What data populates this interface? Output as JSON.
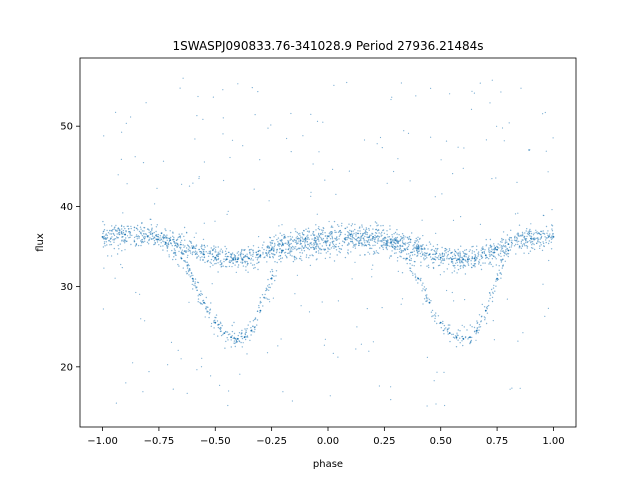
{
  "chart_data": {
    "type": "scatter",
    "title": "1SWASPJ090833.76-341028.9 Period 27936.21484s",
    "xlabel": "phase",
    "ylabel": "flux",
    "xlim": [
      -1.1,
      1.1
    ],
    "ylim": [
      12.5,
      58.5
    ],
    "xticks": [
      -1.0,
      -0.75,
      -0.5,
      -0.25,
      0.0,
      0.25,
      0.5,
      0.75,
      1.0
    ],
    "xtick_labels": [
      "−1.00",
      "−0.75",
      "−0.50",
      "−0.25",
      "0.00",
      "0.25",
      "0.50",
      "0.75",
      "1.00"
    ],
    "yticks": [
      20,
      30,
      40,
      50
    ],
    "ytick_labels": [
      "20",
      "30",
      "40",
      "50"
    ],
    "grid": false,
    "marker_color": "#1f77b4",
    "series": [
      {
        "description_points": "phase-folded light curve repeated twice; upper branch baseline ~36 with shallow dip to ~33.5 near phase -0.4 and 0.6; lower branch deep eclipse to ~23.5 near phase -0.4 and 0.6; sparse outliers 15-56",
        "x": [
          -1.0,
          -0.9,
          -0.8,
          -0.7,
          -0.6,
          -0.55,
          -0.5,
          -0.45,
          -0.42,
          -0.4,
          -0.38,
          -0.35,
          -0.3,
          -0.25,
          -0.2,
          -0.1,
          0.0,
          0.1,
          0.2,
          0.3,
          0.4,
          0.45,
          0.5,
          0.55,
          0.58,
          0.6,
          0.62,
          0.65,
          0.7,
          0.75,
          0.8,
          0.9,
          1.0
        ],
        "y": [
          36.2,
          36.5,
          36.3,
          35.8,
          34.8,
          34.0,
          33.6,
          33.4,
          33.4,
          33.4,
          33.4,
          33.5,
          33.9,
          34.6,
          35.3,
          36.0,
          36.3,
          36.5,
          36.2,
          35.8,
          34.8,
          34.0,
          33.6,
          33.4,
          33.4,
          33.4,
          33.4,
          33.5,
          33.9,
          34.6,
          35.3,
          36.0,
          36.2
        ]
      },
      {
        "x": [
          -0.72,
          -0.65,
          -0.6,
          -0.55,
          -0.5,
          -0.46,
          -0.43,
          -0.4,
          -0.37,
          -0.34,
          -0.3,
          -0.25,
          -0.2,
          0.28,
          0.35,
          0.4,
          0.45,
          0.5,
          0.54,
          0.57,
          0.6,
          0.63,
          0.66,
          0.7,
          0.75,
          0.8
        ],
        "y": [
          35.5,
          33.5,
          31.0,
          28.0,
          25.5,
          24.2,
          23.7,
          23.5,
          23.7,
          24.5,
          27.0,
          31.0,
          34.5,
          35.5,
          33.5,
          31.0,
          28.0,
          25.5,
          24.2,
          23.7,
          23.5,
          23.7,
          24.5,
          27.0,
          31.0,
          34.5
        ]
      }
    ]
  }
}
